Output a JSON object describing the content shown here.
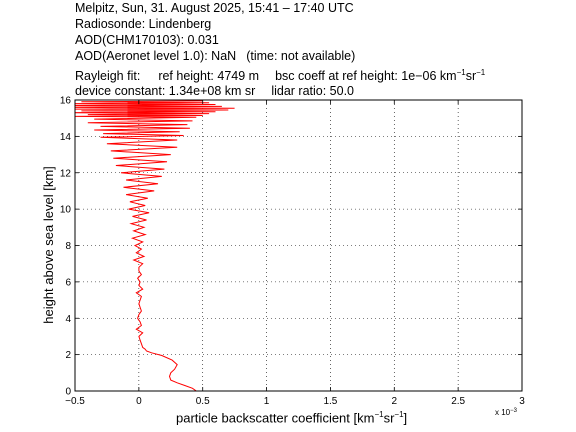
{
  "header": {
    "line1": "Melpitz, Sun, 31. August 2025, 15:41 – 17:40 UTC",
    "line2": "Radiosonde: Lindenberg",
    "line3": "AOD(CHM170103): 0.031",
    "line4a": "AOD(Aeronet level 1.0): NaN",
    "line4b": "(time: not available)",
    "line5a": "Rayleigh fit:",
    "line5b": "ref height: 4749 m",
    "line5c": "bsc coeff at ref height: 1e−06 km",
    "line5c_sup1": "−1",
    "line5c_mid": "sr",
    "line5c_sup2": "−1",
    "line6a": "device constant: 1.34e+08 km sr",
    "line6b": "lidar ratio: 50.0"
  },
  "chart_data": {
    "type": "line",
    "xlabel_main": "particle backscatter coefficient [km",
    "xlabel_sup1": "−1",
    "xlabel_mid": "sr",
    "xlabel_sup2": "−1",
    "xlabel_end": "]",
    "ylabel": "height above sea level [km]",
    "x_exponent_label": "x 10",
    "x_exponent_power": "−3",
    "xlim": [
      -0.5,
      3
    ],
    "ylim": [
      0,
      16
    ],
    "x_ticks": [
      -0.5,
      0,
      0.5,
      1,
      1.5,
      2,
      2.5,
      3
    ],
    "x_tick_labels": [
      "−0.5",
      "0",
      "0.5",
      "1",
      "1.5",
      "2",
      "2.5",
      "3"
    ],
    "y_ticks": [
      0,
      2,
      4,
      6,
      8,
      10,
      12,
      14,
      16
    ],
    "y_tick_labels": [
      "0",
      "2",
      "4",
      "6",
      "8",
      "10",
      "12",
      "14",
      "16"
    ],
    "grid": true,
    "series_color": "#ff0000",
    "series": [
      {
        "x": [
          0.45,
          0.42,
          0.36,
          0.3,
          0.25,
          0.24,
          0.25,
          0.28,
          0.3,
          0.26,
          0.18,
          0.1,
          0.06,
          0.05,
          0.03,
          0.02,
          0.01,
          0.0,
          0.03,
          -0.02,
          0.02,
          0.01,
          -0.01,
          0.0,
          0.02,
          0.01,
          0.0,
          0.01,
          0.02,
          -0.02,
          0.03,
          0.0,
          0.01,
          -0.01,
          0.02,
          0.0,
          0.0,
          0.03,
          -0.04,
          0.04,
          -0.02,
          0.02,
          -0.03,
          0.03,
          -0.05,
          0.05,
          -0.04,
          0.04,
          -0.06,
          0.06,
          -0.05,
          0.08,
          -0.08,
          0.05,
          -0.07,
          0.07,
          -0.1,
          0.12,
          -0.12,
          0.15,
          -0.1,
          0.18,
          -0.14,
          0.2,
          -0.18,
          0.22,
          -0.2,
          0.25,
          -0.22,
          0.3,
          -0.25,
          0.3,
          -0.3,
          0.35,
          -0.28,
          0.32,
          -0.35,
          0.4,
          -0.3,
          0.38,
          -0.4,
          0.42,
          -0.35,
          0.45,
          -0.5,
          0.5,
          -0.4,
          0.55,
          -0.55,
          0.6,
          -0.45,
          0.7,
          -0.5,
          0.75,
          -0.55,
          0.65,
          -0.6,
          0.6,
          -0.5,
          0.55,
          -0.45,
          0.5
        ],
        "y": [
          0.0,
          0.15,
          0.3,
          0.45,
          0.6,
          0.8,
          1.0,
          1.2,
          1.45,
          1.7,
          1.95,
          2.1,
          2.2,
          2.3,
          2.4,
          2.6,
          2.8,
          3.0,
          3.2,
          3.4,
          3.6,
          3.8,
          4.0,
          4.2,
          4.4,
          4.6,
          4.8,
          5.0,
          5.2,
          5.4,
          5.6,
          5.8,
          6.0,
          6.2,
          6.4,
          6.6,
          6.8,
          7.0,
          7.2,
          7.4,
          7.6,
          7.8,
          8.0,
          8.2,
          8.4,
          8.6,
          8.8,
          9.0,
          9.2,
          9.4,
          9.6,
          9.8,
          10.0,
          10.2,
          10.4,
          10.6,
          10.8,
          11.0,
          11.2,
          11.4,
          11.6,
          11.8,
          12.0,
          12.2,
          12.4,
          12.6,
          12.8,
          13.0,
          13.2,
          13.4,
          13.6,
          13.8,
          13.95,
          14.05,
          14.15,
          14.25,
          14.35,
          14.45,
          14.55,
          14.65,
          14.75,
          14.85,
          14.95,
          15.05,
          15.1,
          15.15,
          15.2,
          15.25,
          15.3,
          15.35,
          15.4,
          15.45,
          15.5,
          15.55,
          15.6,
          15.65,
          15.7,
          15.75,
          15.8,
          15.85,
          15.9,
          15.95
        ]
      }
    ]
  }
}
